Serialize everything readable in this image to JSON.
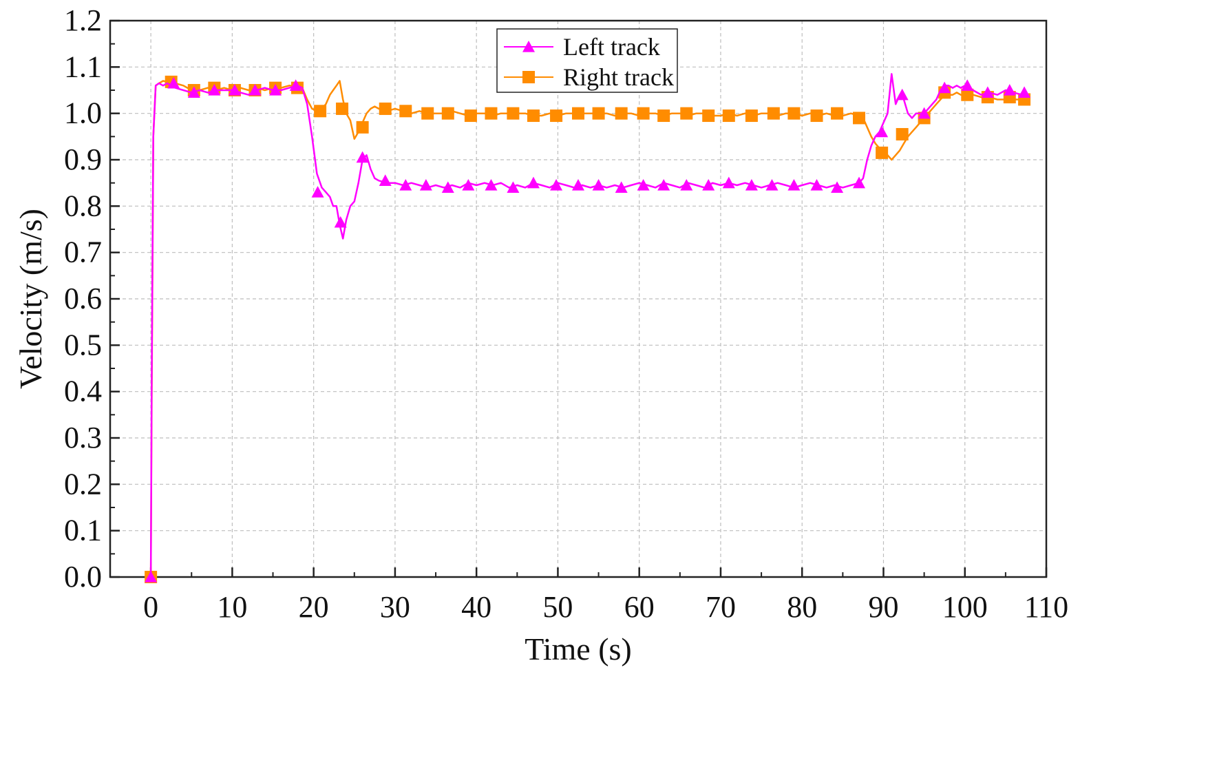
{
  "chart_data": {
    "type": "line",
    "title": "",
    "xlabel": "Time (s)",
    "ylabel": "Velocity (m/s)",
    "xlim": [
      -5,
      110
    ],
    "ylim": [
      0.0,
      1.2
    ],
    "xticks": [
      0,
      10,
      20,
      30,
      40,
      50,
      60,
      70,
      80,
      90,
      100,
      110
    ],
    "yticks": [
      0.0,
      0.1,
      0.2,
      0.3,
      0.4,
      0.5,
      0.6,
      0.7,
      0.8,
      0.9,
      1.0,
      1.1,
      1.2
    ],
    "xtick_labels": [
      "0",
      "10",
      "20",
      "30",
      "40",
      "50",
      "60",
      "70",
      "80",
      "90",
      "100",
      "110"
    ],
    "ytick_labels": [
      "0.0",
      "0.1",
      "0.2",
      "0.3",
      "0.4",
      "0.5",
      "0.6",
      "0.7",
      "0.8",
      "0.9",
      "1.0",
      "1.1",
      "1.2"
    ],
    "grid": true,
    "legend_position": "top-center",
    "series": [
      {
        "name": "Left track",
        "color": "#ff00ff",
        "marker": "triangle",
        "line_x": [
          0,
          0.1,
          0.3,
          0.6,
          1,
          1.5,
          2,
          2.5,
          3,
          4,
          5,
          6,
          7,
          8,
          9,
          10,
          11,
          12,
          13,
          14,
          15,
          16,
          17,
          18,
          18.6,
          19.2,
          19.8,
          20.4,
          21,
          21.5,
          22,
          22.4,
          22.8,
          23.2,
          23.6,
          24,
          24.5,
          25,
          25.5,
          26,
          26.5,
          27,
          27.5,
          28,
          29,
          30,
          31,
          32,
          33,
          34,
          35,
          36,
          37,
          38,
          39,
          40,
          41,
          42,
          43,
          44,
          45,
          46,
          47,
          48,
          49,
          50,
          51,
          52,
          53,
          54,
          55,
          56,
          57,
          58,
          59,
          60,
          61,
          62,
          63,
          64,
          65,
          66,
          67,
          68,
          69,
          70,
          71,
          72,
          73,
          74,
          75,
          76,
          77,
          78,
          79,
          80,
          81,
          82,
          83,
          84,
          85,
          86,
          87,
          87.5,
          88,
          88.5,
          89,
          89.5,
          90,
          90.5,
          91,
          91.5,
          92,
          92.5,
          93,
          93.5,
          94,
          94.5,
          95,
          95.5,
          96,
          96.5,
          97,
          97.5,
          98,
          98.5,
          99,
          99.5,
          100,
          101,
          102,
          103,
          104,
          105,
          106,
          107
        ],
        "line_y": [
          0,
          0.4,
          0.95,
          1.06,
          1.065,
          1.06,
          1.065,
          1.06,
          1.055,
          1.05,
          1.045,
          1.05,
          1.045,
          1.05,
          1.05,
          1.05,
          1.045,
          1.04,
          1.05,
          1.055,
          1.05,
          1.05,
          1.055,
          1.06,
          1.055,
          1.02,
          0.95,
          0.87,
          0.84,
          0.83,
          0.82,
          0.8,
          0.8,
          0.76,
          0.73,
          0.77,
          0.8,
          0.81,
          0.85,
          0.9,
          0.91,
          0.88,
          0.86,
          0.855,
          0.85,
          0.85,
          0.845,
          0.85,
          0.845,
          0.84,
          0.845,
          0.84,
          0.845,
          0.84,
          0.85,
          0.845,
          0.85,
          0.845,
          0.85,
          0.84,
          0.845,
          0.84,
          0.85,
          0.845,
          0.84,
          0.85,
          0.845,
          0.84,
          0.845,
          0.84,
          0.845,
          0.84,
          0.845,
          0.84,
          0.845,
          0.85,
          0.845,
          0.84,
          0.85,
          0.845,
          0.84,
          0.85,
          0.845,
          0.84,
          0.85,
          0.845,
          0.85,
          0.845,
          0.85,
          0.845,
          0.84,
          0.845,
          0.85,
          0.845,
          0.84,
          0.845,
          0.85,
          0.845,
          0.84,
          0.845,
          0.84,
          0.845,
          0.85,
          0.86,
          0.9,
          0.93,
          0.95,
          0.96,
          0.98,
          1.0,
          1.085,
          1.02,
          1.04,
          1.03,
          1.0,
          0.99,
          1.0,
          1.0,
          1.0,
          1.01,
          1.02,
          1.03,
          1.05,
          1.06,
          1.06,
          1.055,
          1.06,
          1.055,
          1.06,
          1.05,
          1.04,
          1.045,
          1.04,
          1.05,
          1.045,
          1.04
        ],
        "marker_x": [
          0,
          2.8,
          5.3,
          7.8,
          10.3,
          12.8,
          15.3,
          17.8,
          20.5,
          23.3,
          26.0,
          28.8,
          31.3,
          33.8,
          36.5,
          39.0,
          41.8,
          44.5,
          47.0,
          49.8,
          52.5,
          55.0,
          57.8,
          60.5,
          63.0,
          65.8,
          68.5,
          71.0,
          73.8,
          76.3,
          79.0,
          81.8,
          84.3,
          87.0,
          89.8,
          92.3,
          95.0,
          97.5,
          100.3,
          102.8,
          105.5,
          107.3
        ],
        "marker_y": [
          0,
          1.065,
          1.045,
          1.05,
          1.05,
          1.05,
          1.05,
          1.06,
          0.83,
          0.765,
          0.905,
          0.855,
          0.845,
          0.845,
          0.84,
          0.845,
          0.845,
          0.84,
          0.85,
          0.845,
          0.845,
          0.845,
          0.84,
          0.845,
          0.845,
          0.845,
          0.845,
          0.85,
          0.845,
          0.845,
          0.845,
          0.845,
          0.84,
          0.85,
          0.96,
          1.04,
          1.0,
          1.055,
          1.06,
          1.045,
          1.05,
          1.045
        ]
      },
      {
        "name": "Right track",
        "color": "#ff8c00",
        "marker": "square",
        "line_x": [
          0,
          0.1,
          0.3,
          0.6,
          1,
          1.5,
          2,
          2.5,
          3,
          4,
          5,
          6,
          7,
          8,
          9,
          10,
          11,
          12,
          13,
          14,
          15,
          16,
          17,
          18,
          18.6,
          19.2,
          19.8,
          20.4,
          21,
          21.5,
          22,
          22.4,
          22.8,
          23.2,
          23.6,
          24,
          24.5,
          25,
          25.5,
          26,
          26.5,
          27,
          27.5,
          28,
          29,
          30,
          31,
          32,
          33,
          34,
          35,
          36,
          37,
          38,
          39,
          40,
          41,
          42,
          43,
          44,
          45,
          46,
          47,
          48,
          49,
          50,
          51,
          52,
          53,
          54,
          55,
          56,
          57,
          58,
          59,
          60,
          61,
          62,
          63,
          64,
          65,
          66,
          67,
          68,
          69,
          70,
          71,
          72,
          73,
          74,
          75,
          76,
          77,
          78,
          79,
          80,
          81,
          82,
          83,
          84,
          85,
          86,
          87,
          87.5,
          88,
          88.5,
          89,
          89.5,
          90,
          90.5,
          91,
          91.5,
          92,
          92.5,
          93,
          93.5,
          94,
          94.5,
          95,
          95.5,
          96,
          96.5,
          97,
          97.5,
          98,
          98.5,
          99,
          99.5,
          100,
          101,
          102,
          103,
          104,
          105,
          106,
          107
        ],
        "line_y": [
          0,
          0.35,
          0.95,
          1.06,
          1.065,
          1.07,
          1.068,
          1.07,
          1.065,
          1.06,
          1.05,
          1.05,
          1.055,
          1.05,
          1.055,
          1.05,
          1.055,
          1.05,
          1.055,
          1.05,
          1.055,
          1.055,
          1.06,
          1.058,
          1.055,
          1.03,
          1.01,
          1.005,
          1.01,
          1.02,
          1.04,
          1.05,
          1.06,
          1.07,
          1.03,
          1.0,
          0.985,
          0.945,
          0.96,
          0.98,
          1.0,
          1.01,
          1.015,
          1.01,
          1.005,
          1.01,
          1.005,
          1.0,
          1.005,
          1.0,
          1.0,
          1.0,
          1.005,
          1.0,
          0.995,
          1.0,
          1.0,
          0.995,
          1.0,
          1.0,
          1.0,
          1.0,
          0.995,
          0.995,
          1.0,
          0.995,
          1.0,
          1.0,
          1.0,
          1.0,
          1.0,
          1.0,
          0.995,
          1.0,
          1.0,
          0.995,
          1.0,
          1.0,
          0.995,
          1.0,
          1.0,
          0.995,
          1.0,
          1.0,
          0.995,
          0.995,
          1.0,
          0.995,
          1.0,
          0.995,
          1.0,
          1.0,
          0.995,
          1.0,
          1.0,
          0.995,
          1.0,
          0.995,
          1.0,
          0.995,
          0.995,
          1.0,
          0.995,
          0.99,
          0.97,
          0.95,
          0.935,
          0.925,
          0.92,
          0.91,
          0.9,
          0.91,
          0.92,
          0.935,
          0.95,
          0.96,
          0.97,
          0.98,
          0.99,
          1.0,
          1.01,
          1.02,
          1.03,
          1.04,
          1.04,
          1.04,
          1.045,
          1.04,
          1.04,
          1.04,
          1.035,
          1.035,
          1.03,
          1.03,
          1.03,
          1.03
        ],
        "marker_x": [
          0,
          2.5,
          5.3,
          7.8,
          10.3,
          12.8,
          15.3,
          18.0,
          20.8,
          23.5,
          26.0,
          28.8,
          31.3,
          34.0,
          36.5,
          39.3,
          41.8,
          44.5,
          47.0,
          49.8,
          52.5,
          55.0,
          57.8,
          60.5,
          63.0,
          65.8,
          68.5,
          71.0,
          73.8,
          76.5,
          79.0,
          81.8,
          84.3,
          87.0,
          89.8,
          92.3,
          95.0,
          97.5,
          100.3,
          102.8,
          105.5,
          107.3
        ],
        "marker_y": [
          0,
          1.068,
          1.05,
          1.055,
          1.05,
          1.05,
          1.055,
          1.055,
          1.005,
          1.01,
          0.97,
          1.01,
          1.005,
          1.0,
          1.0,
          0.995,
          1.0,
          1.0,
          0.995,
          0.995,
          1.0,
          1.0,
          1.0,
          1.0,
          0.995,
          1.0,
          0.995,
          0.995,
          0.995,
          1.0,
          1.0,
          0.995,
          1.0,
          0.99,
          0.915,
          0.955,
          0.99,
          1.045,
          1.04,
          1.035,
          1.035,
          1.03
        ]
      }
    ]
  }
}
